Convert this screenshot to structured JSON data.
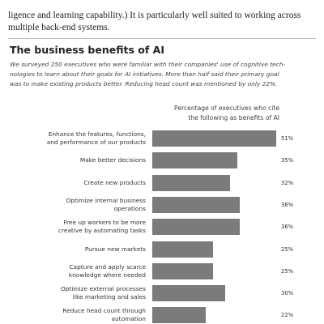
{
  "text": {
    "lines": [
      "ligence and learning capability.) It is particularly well suited to working across",
      "multiple back-end systems."
    ]
  },
  "chart_data": {
    "type": "bar",
    "orientation": "horizontal",
    "title": "The business benefits of AI",
    "subtitle": "We surveyed 250 executives who were familiar with their companies' use of cognitive tech-\nnologies to learn about their goals for AI initiatives. More than half said their primary goal\nwas to make existing products better. Reducing head count was mentioned by only 22%.",
    "axis_label": "Percentage of executives who cite\nthe following as benefits of AI",
    "categories": [
      "Enhance the features, functions,\nand performance of our products",
      "Make better decisions",
      "Create new products",
      "Optimize internal business\noperations",
      "Free up workers to be more\ncreative by automating tasks",
      "Pursue new markets",
      "Capture and apply scarce\nknowledge where needed",
      "Optimize external processes\nlike marketing and sales",
      "Reduce head count through\nautomation"
    ],
    "values": [
      51,
      35,
      32,
      36,
      36,
      25,
      25,
      30,
      22
    ],
    "value_labels": [
      "51%",
      "35%",
      "32%",
      "36%",
      "36%",
      "25%",
      "25%",
      "30%",
      "22%"
    ],
    "color": "#7b7b7b"
  }
}
